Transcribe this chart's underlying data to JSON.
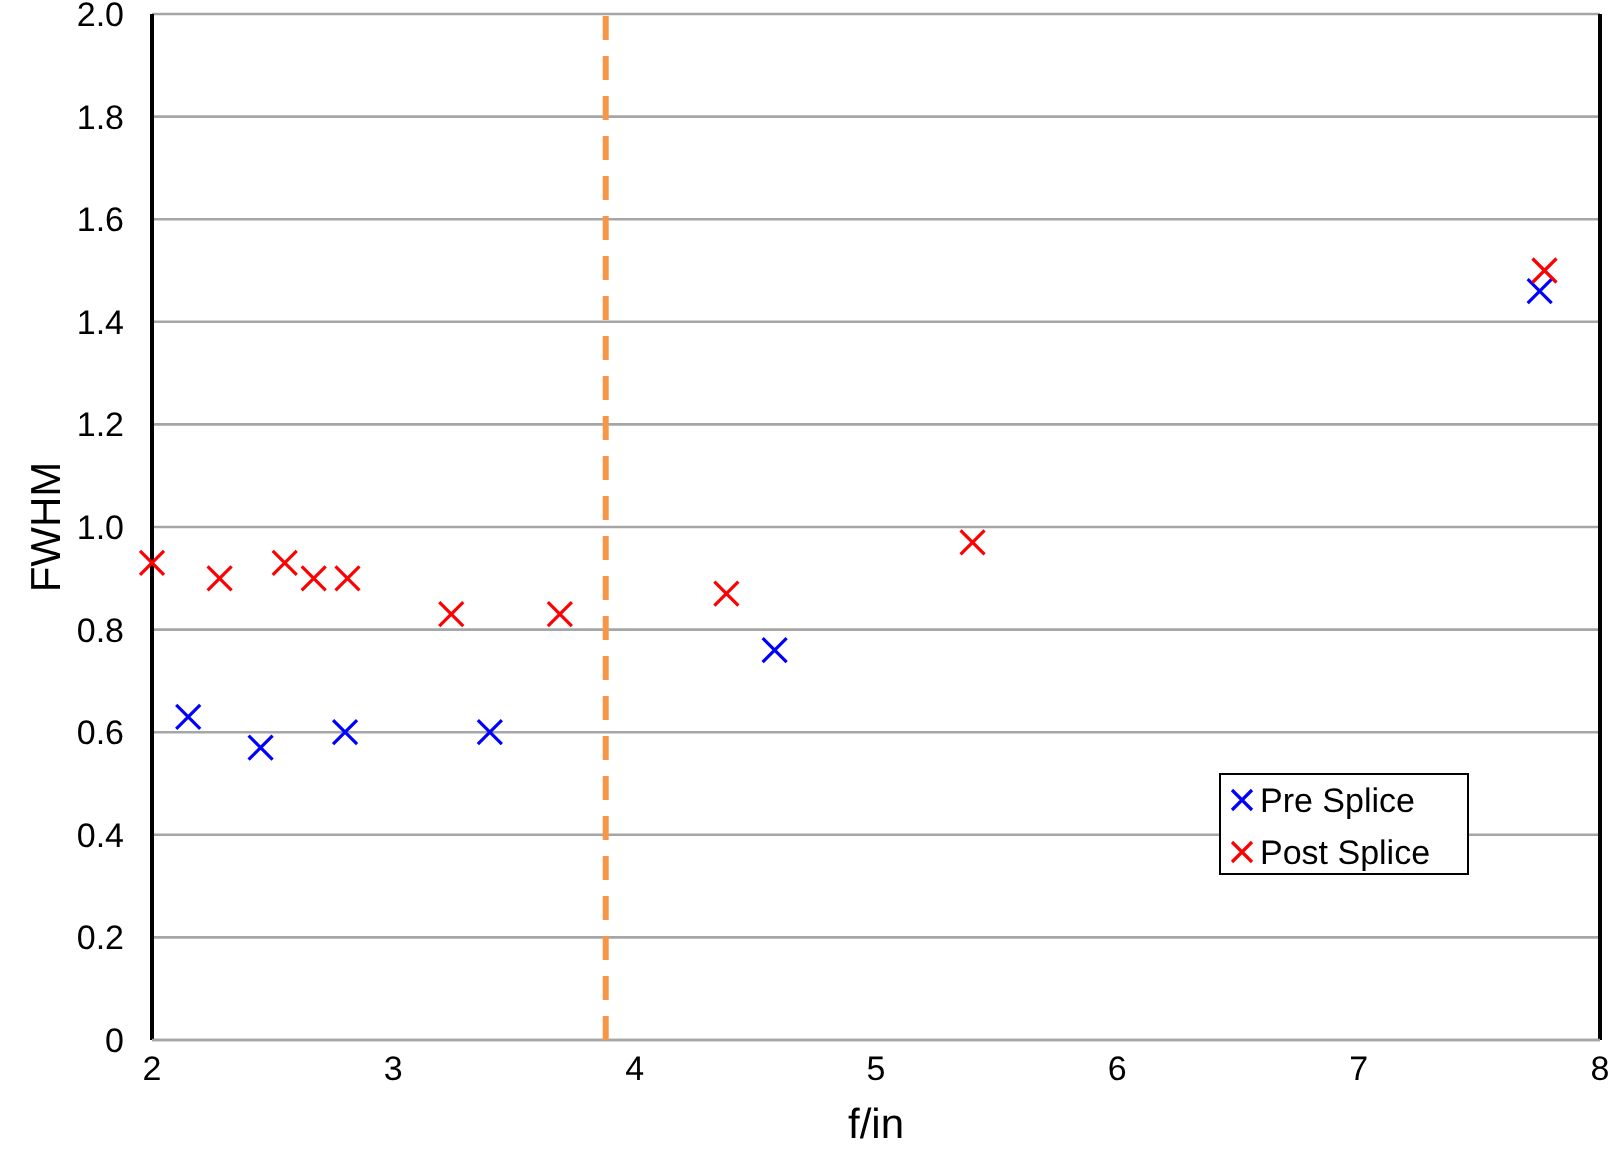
{
  "chart_data": {
    "type": "scatter",
    "xlabel": "f/in",
    "ylabel": "FWHM",
    "xlim": [
      2,
      8
    ],
    "xticks": [
      2,
      3,
      4,
      5,
      6,
      7,
      8
    ],
    "ylim": [
      0,
      2
    ],
    "yticks": [
      {
        "value": 0,
        "label": "0"
      },
      {
        "value": 0.2,
        "label": "0.2"
      },
      {
        "value": 0.4,
        "label": "0.4"
      },
      {
        "value": 0.6,
        "label": "0.6"
      },
      {
        "value": 0.8,
        "label": "0.8"
      },
      {
        "value": 1,
        "label": "1.0"
      },
      {
        "value": 1.2,
        "label": "1.2"
      },
      {
        "value": 1.4,
        "label": "1.4"
      },
      {
        "value": 1.6,
        "label": "1.6"
      },
      {
        "value": 1.8,
        "label": "1.8"
      },
      {
        "value": 2,
        "label": "2.0"
      }
    ],
    "grid": "y",
    "marker": "cross",
    "legend": "bottom right",
    "series": [
      {
        "name": "Pre Splice",
        "color": "#0000ff",
        "x": [
          2.15,
          2.45,
          2.8,
          3.4,
          4.58,
          7.75
        ],
        "values": [
          0.63,
          0.57,
          0.6,
          0.6,
          0.76,
          1.46
        ]
      },
      {
        "name": "Post Splice",
        "color": "#ff0000",
        "x": [
          2,
          2.28,
          2.55,
          2.67,
          2.81,
          3.24,
          3.69,
          4.38,
          5.4,
          7.77
        ],
        "values": [
          0.93,
          0.9,
          0.93,
          0.9,
          0.9,
          0.83,
          0.83,
          0.87,
          0.97,
          1.5
        ]
      }
    ],
    "ref_lines": [
      {
        "axis": "x",
        "value": 3.88,
        "color": "#f79646",
        "line_style": "dashed"
      }
    ]
  }
}
